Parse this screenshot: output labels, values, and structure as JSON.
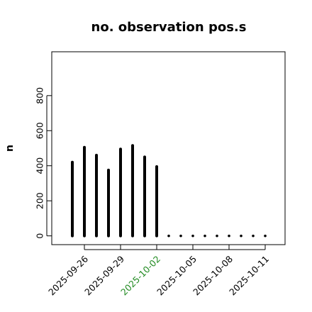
{
  "chart_data": {
    "type": "bar",
    "title": "no. observation pos.s",
    "ylabel": "n",
    "xlabel": "",
    "ylim": [
      -50,
      1050
    ],
    "y_ticks": [
      0,
      200,
      400,
      600,
      800
    ],
    "x": [
      "2025-09-25",
      "2025-09-26",
      "2025-09-27",
      "2025-09-28",
      "2025-09-29",
      "2025-09-30",
      "2025-10-01",
      "2025-10-02",
      "2025-10-03",
      "2025-10-04",
      "2025-10-05",
      "2025-10-06",
      "2025-10-07",
      "2025-10-08",
      "2025-10-09",
      "2025-10-10",
      "2025-10-11"
    ],
    "values": [
      420,
      505,
      460,
      375,
      495,
      515,
      450,
      395,
      0,
      0,
      0,
      0,
      0,
      0,
      0,
      0,
      0
    ],
    "x_tick_labels": [
      "2025-09-26",
      "2025-09-29",
      "2025-10-02",
      "2025-10-05",
      "2025-10-08",
      "2025-10-11"
    ],
    "highlight_tick": "2025-10-02",
    "highlight_color": "#228B22",
    "bar_color": "#000000",
    "grid": false
  }
}
